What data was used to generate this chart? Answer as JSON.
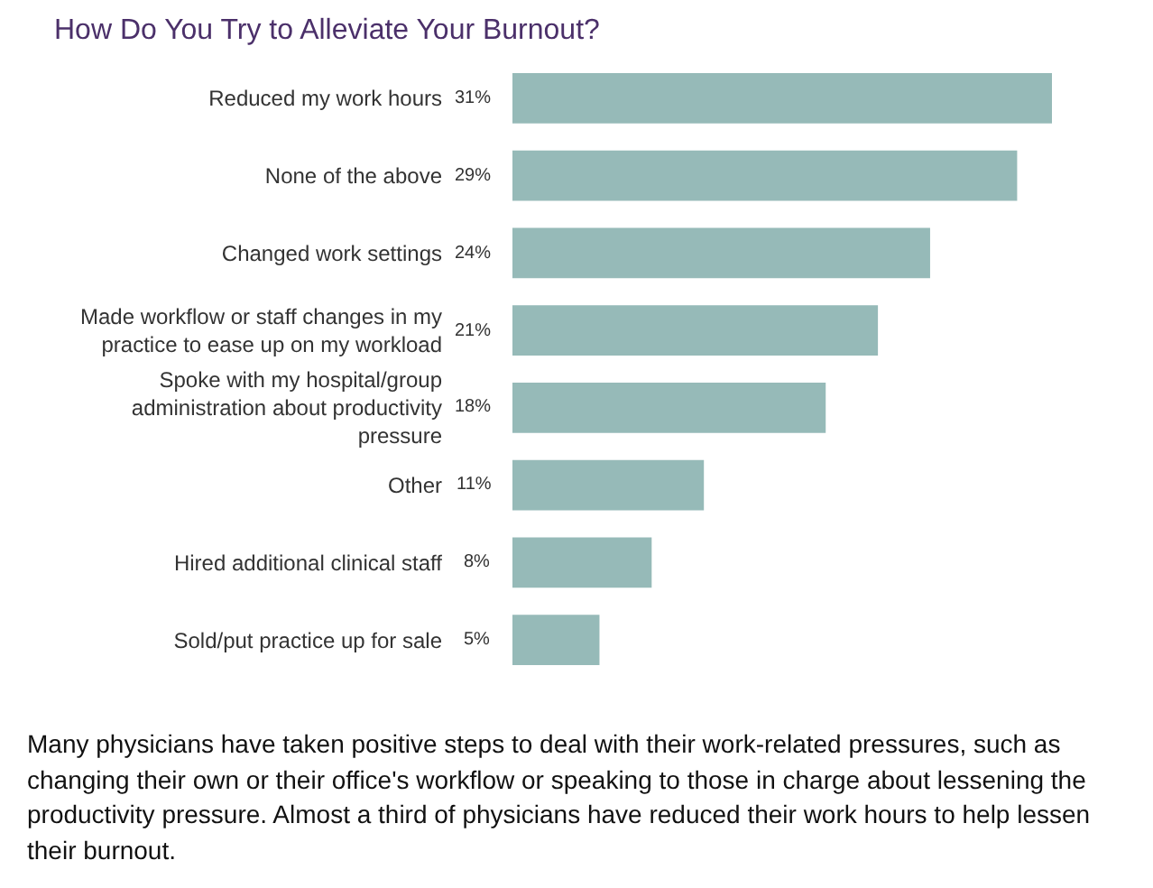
{
  "chart_data": {
    "type": "bar",
    "orientation": "horizontal",
    "title": "How Do You Try to Alleviate Your Burnout?",
    "categories": [
      "Reduced my work hours",
      "None of the above",
      "Changed work settings",
      "Made workflow or staff changes in my practice to ease up on my workload",
      "Spoke with my hospital/group administration about productivity pressure",
      "Other",
      "Hired additional clinical staff",
      "Sold/put practice up for sale"
    ],
    "values": [
      31,
      29,
      24,
      21,
      18,
      11,
      8,
      5
    ],
    "value_labels": [
      "31%",
      "29%",
      "24%",
      "21%",
      "18%",
      "11%",
      "8%",
      "5%"
    ],
    "color": "#96bab8",
    "xlim": [
      0,
      31
    ],
    "tick_labels": "y",
    "grid": false,
    "annotations": [
      "Many physicians have taken positive steps to deal with their work-related pressures, such as changing their own or their office's workflow or speaking to those in charge about lessening the productivity pressure. Almost a third of physicians have reduced their work hours to help lessen their burnout."
    ]
  }
}
